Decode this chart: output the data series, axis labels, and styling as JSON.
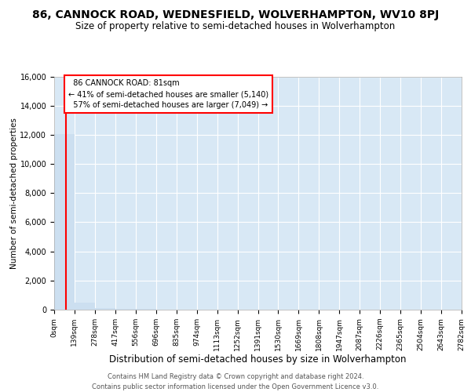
{
  "title": "86, CANNOCK ROAD, WEDNESFIELD, WOLVERHAMPTON, WV10 8PJ",
  "subtitle": "Size of property relative to semi-detached houses in Wolverhampton",
  "xlabel": "Distribution of semi-detached houses by size in Wolverhampton",
  "ylabel": "Number of semi-detached properties",
  "footer_line1": "Contains HM Land Registry data © Crown copyright and database right 2024.",
  "footer_line2": "Contains public sector information licensed under the Open Government Licence v3.0.",
  "bin_edges": [
    0,
    139,
    278,
    417,
    556,
    696,
    835,
    974,
    1113,
    1252,
    1391,
    1530,
    1669,
    1808,
    1947,
    2087,
    2226,
    2365,
    2504,
    2643,
    2782
  ],
  "bin_labels": [
    "0sqm",
    "139sqm",
    "278sqm",
    "417sqm",
    "556sqm",
    "696sqm",
    "835sqm",
    "974sqm",
    "1113sqm",
    "1252sqm",
    "1391sqm",
    "1530sqm",
    "1669sqm",
    "1808sqm",
    "1947sqm",
    "2087sqm",
    "2226sqm",
    "2365sqm",
    "2504sqm",
    "2643sqm",
    "2782sqm"
  ],
  "bar_heights": [
    12050,
    490,
    120,
    55,
    30,
    18,
    12,
    8,
    6,
    5,
    4,
    3,
    2,
    2,
    1,
    1,
    1,
    1,
    1,
    1
  ],
  "bar_color": "#ccdff0",
  "subject_sqm": 81,
  "subject_label": "86 CANNOCK ROAD: 81sqm",
  "annotation_smaller": "← 41% of semi-detached houses are smaller (5,140)",
  "annotation_larger": "57% of semi-detached houses are larger (7,049) →",
  "ylim": [
    0,
    16000
  ],
  "yticks": [
    0,
    2000,
    4000,
    6000,
    8000,
    10000,
    12000,
    14000,
    16000
  ],
  "grid_color": "#ffffff",
  "bg_color": "#d8e8f5",
  "title_fontsize": 10,
  "subtitle_fontsize": 8.5,
  "ylabel_fontsize": 7.5,
  "xlabel_fontsize": 8.5,
  "tick_fontsize": 7,
  "xtick_fontsize": 6.5,
  "footer_fontsize": 6
}
